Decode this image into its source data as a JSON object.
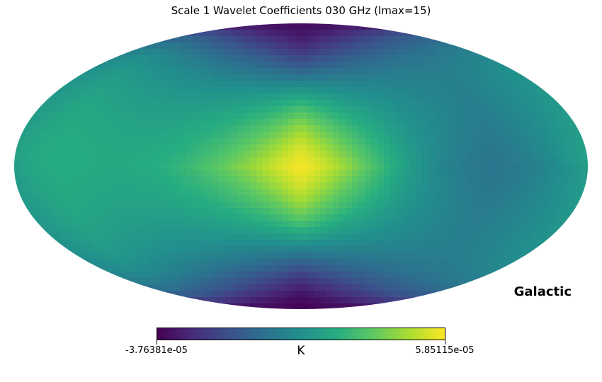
{
  "chart_data": {
    "type": "heatmap",
    "title": "Scale 1 Wavelet Coefficients 030 GHz (lmax=15)",
    "projection": "mollweide",
    "coordinate_system": "Galactic",
    "colormap": "viridis",
    "colorbar": {
      "min_label": "-3.76381e-05",
      "max_label": "5.85115e-05",
      "min": -3.76381e-05,
      "max": 5.85115e-05,
      "unit": "K"
    },
    "features": [
      {
        "lon": 0,
        "lat": 0,
        "value": 5.85115e-05
      },
      {
        "lon": 150,
        "lat": 5,
        "value": 2.2e-05
      },
      {
        "lon": -120,
        "lat": 0,
        "value": 0.0
      },
      {
        "lon": 0,
        "lat": 85,
        "value": -3.5e-05
      },
      {
        "lon": 0,
        "lat": -85,
        "value": -3.76381e-05
      }
    ]
  }
}
